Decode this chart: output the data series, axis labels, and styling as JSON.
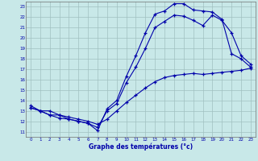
{
  "xlabel": "Graphe des températures (°c)",
  "bg_color": "#c8e8e8",
  "line_color": "#0000aa",
  "grid_color": "#a0c0c0",
  "xmin": 0,
  "xmax": 23,
  "ymin": 11,
  "ymax": 23,
  "line1_x": [
    0,
    1,
    2,
    3,
    4,
    5,
    6,
    7,
    8,
    9,
    10,
    11,
    12,
    13,
    14,
    15,
    16,
    17,
    18,
    19,
    20,
    21,
    22,
    23
  ],
  "line1_y": [
    13.3,
    13.0,
    12.6,
    12.6,
    12.2,
    12.0,
    11.8,
    11.1,
    13.2,
    14.0,
    16.3,
    18.3,
    20.5,
    22.3,
    22.6,
    23.3,
    23.3,
    22.7,
    22.6,
    22.5,
    21.8,
    18.5,
    18.0,
    17.2
  ],
  "line2_x": [
    0,
    1,
    2,
    3,
    4,
    5,
    6,
    7,
    8,
    9,
    10,
    11,
    12,
    13,
    14,
    15,
    16,
    17,
    18,
    19,
    20,
    21,
    22,
    23
  ],
  "line2_y": [
    13.3,
    13.0,
    12.6,
    12.3,
    12.2,
    12.0,
    11.8,
    11.4,
    13.0,
    13.7,
    15.7,
    17.2,
    19.0,
    21.0,
    21.6,
    22.2,
    22.1,
    21.7,
    21.2,
    22.2,
    21.7,
    20.5,
    18.3,
    17.5
  ],
  "line3_x": [
    0,
    1,
    2,
    3,
    4,
    5,
    6,
    7,
    8,
    9,
    10,
    11,
    12,
    13,
    14,
    15,
    16,
    17,
    18,
    19,
    20,
    21,
    22,
    23
  ],
  "line3_y": [
    13.5,
    13.0,
    13.0,
    12.6,
    12.4,
    12.2,
    12.0,
    11.7,
    12.2,
    13.0,
    13.8,
    14.5,
    15.2,
    15.8,
    16.2,
    16.4,
    16.5,
    16.6,
    16.5,
    16.6,
    16.7,
    16.8,
    16.9,
    17.1
  ]
}
